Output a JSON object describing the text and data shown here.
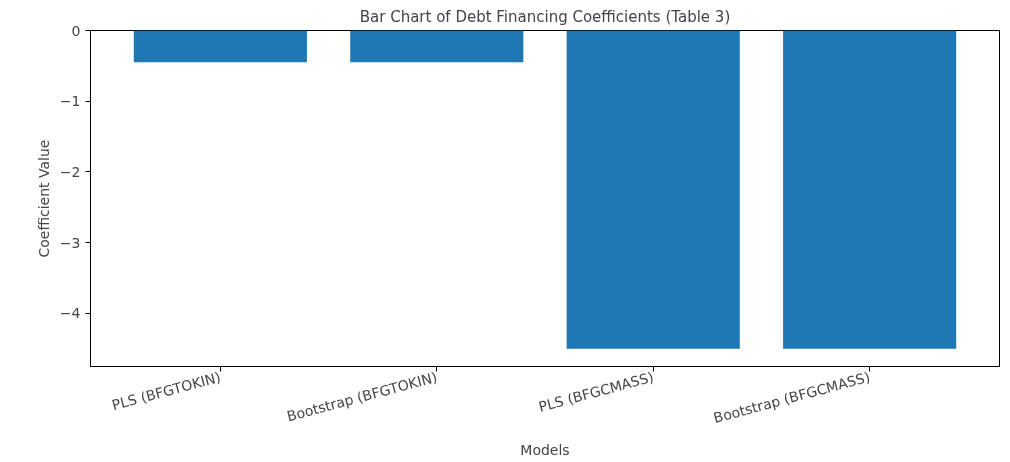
{
  "chart_data": {
    "type": "bar",
    "title": "Bar Chart of Debt Financing Coefficients (Table 3)",
    "xlabel": "Models",
    "ylabel": "Coefficient Value",
    "categories": [
      "PLS (BFGTOKIN)",
      "Bootstrap (BFGTOKIN)",
      "PLS (BFGCMASS)",
      "Bootstrap (BFGCMASS)"
    ],
    "values": [
      -0.45,
      -0.45,
      -4.5,
      -4.5
    ],
    "color": "#1f77b4",
    "ylim": [
      -4.75,
      0
    ],
    "yticks": [
      0,
      {
        "value": -1,
        "label": "−1"
      },
      {
        "value": -2,
        "label": "−2"
      },
      {
        "value": -3,
        "label": "−3"
      },
      {
        "value": -4,
        "label": "−4"
      }
    ],
    "grid": false
  }
}
